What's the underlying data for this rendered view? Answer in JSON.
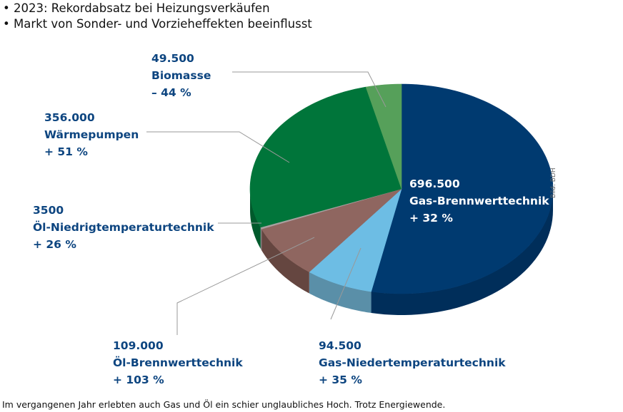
{
  "header": {
    "bullets": [
      "• 2023: Rekordabsatz bei Heizungsverkäufen",
      "• Markt von Sonder- und Vorzieheffekten beeinflusst"
    ]
  },
  "chart_data": {
    "type": "pie",
    "title": "2023: Rekordabsatz bei Heizungsverkäufen",
    "style": "3d-elliptical",
    "slices": [
      {
        "label": "Gas-Brennwerttechnik",
        "value": 696500,
        "value_text": "696.500",
        "change": "+ 32 %",
        "color": "#003a70",
        "side": "#002e5a"
      },
      {
        "label": "Gas-Niedertemperaturtechnik",
        "value": 94500,
        "value_text": "94.500",
        "change": "+ 35 %",
        "color": "#6dbde4",
        "side": "#5a8fa8"
      },
      {
        "label": "Öl-Brennwerttechnik",
        "value": 109000,
        "value_text": "109.000",
        "change": "+ 103 %",
        "color": "#8f6660",
        "side": "#654640"
      },
      {
        "label": "Öl-Niedrigtemperaturtechnik",
        "value": 3500,
        "value_text": "3500",
        "change": "+ 26 %",
        "color": "#a9a0a0",
        "side": "#808080"
      },
      {
        "label": "Wärmepumpen",
        "value": 356000,
        "value_text": "356.000",
        "change": "+ 51 %",
        "color": "#00753a",
        "side": "#005a2c"
      },
      {
        "label": "Biomasse",
        "value": 49500,
        "value_text": "49.500",
        "change": "– 44 %",
        "color": "#56a05a",
        "side": "#3f7c44"
      }
    ]
  },
  "credit": "Bild: BDH",
  "caption": "Im vergangenen Jahr erlebten auch Gas und Öl ein schier unglaubliches Hoch. Trotz Energiewende."
}
